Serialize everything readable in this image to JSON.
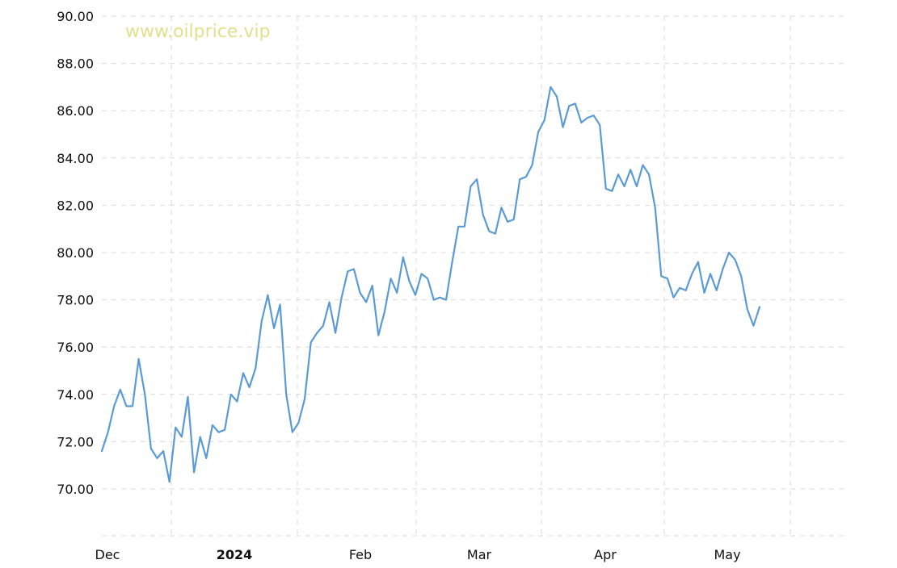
{
  "watermark": "www.oilprice.vip",
  "chart_data": {
    "type": "line",
    "title": "",
    "xlabel": "",
    "ylabel": "",
    "ylim": [
      68,
      90
    ],
    "grid": true,
    "y_ticks": [
      70,
      72,
      74,
      76,
      78,
      80,
      82,
      84,
      86,
      88,
      90
    ],
    "y_tick_labels": [
      "70.00",
      "72.00",
      "74.00",
      "76.00",
      "78.00",
      "80.00",
      "82.00",
      "84.00",
      "86.00",
      "88.00",
      "90.00"
    ],
    "x_tick_labels": [
      {
        "label": "Dec",
        "bold": false
      },
      {
        "label": "2024",
        "bold": true
      },
      {
        "label": "Feb",
        "bold": false
      },
      {
        "label": "Mar",
        "bold": false
      },
      {
        "label": "Apr",
        "bold": false
      },
      {
        "label": "May",
        "bold": false
      }
    ],
    "line_color": "#5b9bd5",
    "watermark_color": "#e2e08a",
    "series": [
      {
        "values": [
          71.6,
          72.4,
          73.5,
          74.2,
          73.5,
          73.5,
          75.5,
          74.0,
          71.7,
          71.3,
          71.6,
          70.3,
          72.6,
          72.2,
          73.9,
          70.7,
          72.2,
          71.3,
          72.7,
          72.4,
          72.5,
          74.0,
          73.7,
          74.9,
          74.3,
          75.1,
          77.1,
          78.2,
          76.8,
          77.8,
          74.0,
          72.4,
          72.8,
          73.8,
          76.2,
          76.6,
          76.9,
          77.9,
          76.6,
          78.1,
          79.2,
          79.3,
          78.3,
          77.9,
          78.6,
          76.5,
          77.5,
          78.9,
          78.3,
          79.8,
          78.8,
          78.2,
          79.1,
          78.9,
          78.0,
          78.1,
          78.0,
          79.6,
          81.1,
          81.1,
          82.8,
          83.1,
          81.6,
          80.9,
          80.8,
          81.9,
          81.3,
          81.4,
          83.1,
          83.2,
          83.7,
          85.1,
          85.6,
          87.0,
          86.6,
          85.3,
          86.2,
          86.3,
          85.5,
          85.7,
          85.8,
          85.4,
          82.7,
          82.6,
          83.3,
          82.8,
          83.5,
          82.8,
          83.7,
          83.3,
          81.9,
          79.0,
          78.9,
          78.1,
          78.5,
          78.4,
          79.1,
          79.6,
          78.3,
          79.1,
          78.4,
          79.3,
          80.0,
          79.7,
          79.0,
          77.6,
          76.9,
          77.7
        ]
      }
    ]
  }
}
